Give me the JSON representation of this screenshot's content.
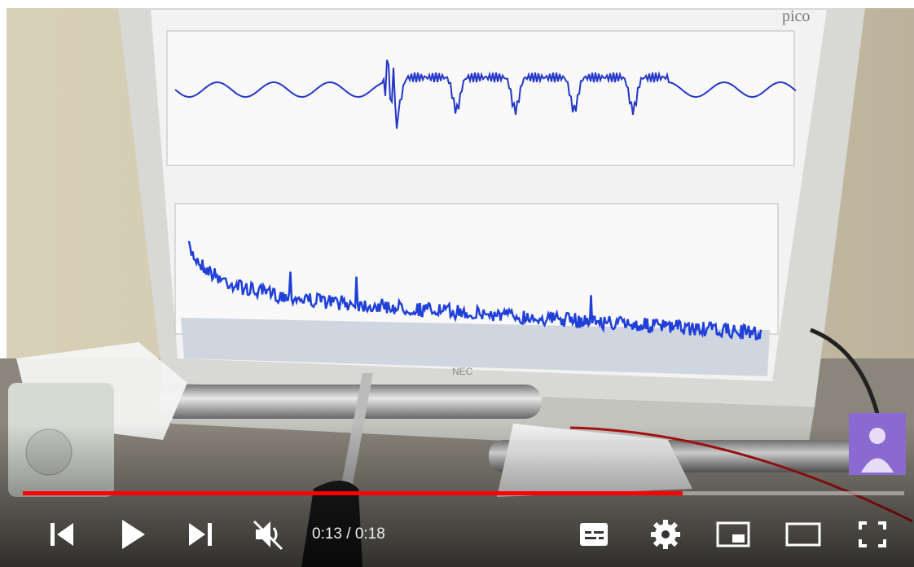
{
  "player": {
    "time_display": "0:13 / 0:18"
  },
  "scene": {
    "screen_brand": "pico",
    "monitor_brand": "NEC"
  }
}
